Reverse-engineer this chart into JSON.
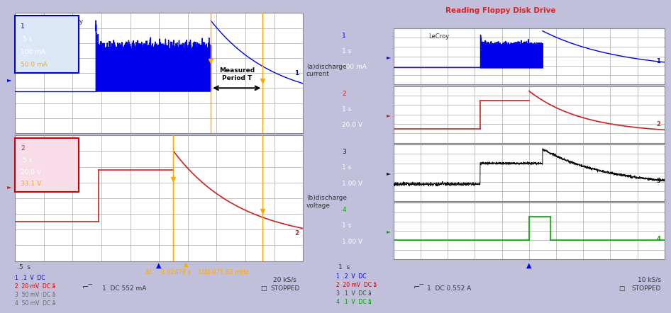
{
  "bg_color": "#c0c0dc",
  "scope_bg": "#ffffff",
  "grid_color": "#999999",
  "left": {
    "lecroy_text": "LeCroy",
    "ch1_box_text": [
      "1",
      ".5 s",
      "100 mA",
      "50.0 mA"
    ],
    "ch2_box_text": [
      "2",
      ".5 s",
      "20.0 V",
      "33.1 V"
    ],
    "ch1_color": "#0000ee",
    "ch2_color": "#cc2222",
    "ch1_box_border": "#0000cc",
    "ch2_box_border": "#cc0000",
    "ch1_box_bg": "#dce8f8",
    "ch2_box_bg": "#f8dce8",
    "orange_color": "#ffaa00",
    "annotation1": "(a)discharge\ncurrent",
    "annotation2": "(b)discharge\nvoltage",
    "measured_text": "Measured\nPeriod T",
    "time_label": ".5  s",
    "delta_text": "Δt    -1.02478 s    1/Δt-975.82 mHz",
    "rate_text": "20 kS/s",
    "dc_text": "1  DC 552 mA",
    "stopped_text": "STOPPED",
    "ch_settings": [
      "1  .1  V  DC",
      "2  20 mV  DC ã",
      "3  50 mV  DC ã",
      "4  50 mV  DC ã"
    ],
    "ch_settings_colors": [
      "#0000cc",
      "#cc0000",
      "#666666",
      "#666666"
    ]
  },
  "right": {
    "title": "Reading Floppy Disk Drive",
    "title_color": "#dd2222",
    "lecroy_text": "LeCroy",
    "ch1_box_text": [
      "1",
      "1 s",
      "200 mA"
    ],
    "ch2_box_text": [
      "2",
      "1 s",
      "20.0 V"
    ],
    "ch3_box_text": [
      "3",
      "1 s",
      "1.00 V"
    ],
    "ch4_box_text": [
      "4",
      "1 s",
      "1.00 V"
    ],
    "ch_colors": [
      "#0000ee",
      "#cc2222",
      "#111111",
      "#00aa00"
    ],
    "ch_box_borders": [
      "#0000cc",
      "#cc0000",
      "#333333",
      "#009900"
    ],
    "ch_box_bgs": [
      "#dce8f8",
      "#f8dce8",
      "#e8e8e8",
      "#dcf8dc"
    ],
    "time_label": "1  s",
    "rate_text": "10 kS/s",
    "dc_text": "1  DC 0.552 A",
    "stopped_text": "STOPPED",
    "ch_settings": [
      "1  .2  V  DC",
      "2  20 mV  DC ã",
      "3  .1  V  DC ã",
      "4  .1  V  DC ã"
    ],
    "ch_settings_colors": [
      "#0000cc",
      "#cc0000",
      "#444444",
      "#009900"
    ]
  }
}
